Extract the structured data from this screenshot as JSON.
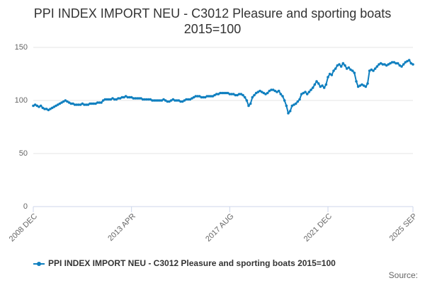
{
  "chart_data": {
    "type": "line",
    "title": "PPI INDEX IMPORT NEU - C3012 Pleasure and sporting boats 2015=100",
    "source": "Source:",
    "x": [
      "2008 DEC",
      "2009 JAN",
      "2009 FEB",
      "2009 MAR",
      "2009 APR",
      "2009 MAY",
      "2009 JUN",
      "2009 JUL",
      "2009 AUG",
      "2009 SEP",
      "2009 OCT",
      "2009 NOV",
      "2009 DEC",
      "2010 JAN",
      "2010 FEB",
      "2010 MAR",
      "2010 APR",
      "2010 MAY",
      "2010 JUN",
      "2010 JUL",
      "2010 AUG",
      "2010 SEP",
      "2010 OCT",
      "2010 NOV",
      "2010 DEC",
      "2011 JAN",
      "2011 FEB",
      "2011 MAR",
      "2011 APR",
      "2011 MAY",
      "2011 JUN",
      "2011 JUL",
      "2011 AUG",
      "2011 SEP",
      "2011 OCT",
      "2011 NOV",
      "2011 DEC",
      "2012 JAN",
      "2012 FEB",
      "2012 MAR",
      "2012 APR",
      "2012 MAY",
      "2012 JUN",
      "2012 JUL",
      "2012 AUG",
      "2012 SEP",
      "2012 OCT",
      "2012 NOV",
      "2012 DEC",
      "2013 JAN",
      "2013 FEB",
      "2013 MAR",
      "2013 APR",
      "2013 MAY",
      "2013 JUN",
      "2013 JUL",
      "2013 AUG",
      "2013 SEP",
      "2013 OCT",
      "2013 NOV",
      "2013 DEC",
      "2014 JAN",
      "2014 FEB",
      "2014 MAR",
      "2014 APR",
      "2014 MAY",
      "2014 JUN",
      "2014 JUL",
      "2014 AUG",
      "2014 SEP",
      "2014 OCT",
      "2014 NOV",
      "2014 DEC",
      "2015 JAN",
      "2015 FEB",
      "2015 MAR",
      "2015 APR",
      "2015 MAY",
      "2015 JUN",
      "2015 JUL",
      "2015 AUG",
      "2015 SEP",
      "2015 OCT",
      "2015 NOV",
      "2015 DEC",
      "2016 JAN",
      "2016 FEB",
      "2016 MAR",
      "2016 APR",
      "2016 MAY",
      "2016 JUN",
      "2016 JUL",
      "2016 AUG",
      "2016 SEP",
      "2016 OCT",
      "2016 NOV",
      "2016 DEC",
      "2017 JAN",
      "2017 FEB",
      "2017 MAR",
      "2017 APR",
      "2017 MAY",
      "2017 JUN",
      "2017 JUL",
      "2017 AUG",
      "2017 SEP",
      "2017 OCT",
      "2017 NOV",
      "2017 DEC",
      "2018 JAN",
      "2018 FEB",
      "2018 MAR",
      "2018 APR",
      "2018 MAY",
      "2018 JUN",
      "2018 JUL",
      "2018 AUG",
      "2018 SEP",
      "2018 OCT",
      "2018 NOV",
      "2018 DEC",
      "2019 JAN",
      "2019 FEB",
      "2019 MAR",
      "2019 APR",
      "2019 MAY",
      "2019 JUN",
      "2019 JUL",
      "2019 AUG",
      "2019 SEP",
      "2019 OCT",
      "2019 NOV",
      "2019 DEC",
      "2020 JAN",
      "2020 FEB",
      "2020 MAR",
      "2020 APR",
      "2020 MAY",
      "2020 JUN",
      "2020 JUL",
      "2020 AUG",
      "2020 SEP",
      "2020 OCT",
      "2020 NOV",
      "2020 DEC",
      "2021 JAN",
      "2021 FEB",
      "2021 MAR",
      "2021 APR",
      "2021 MAY",
      "2021 JUN",
      "2021 JUL",
      "2021 AUG",
      "2021 SEP",
      "2021 OCT",
      "2021 NOV",
      "2021 DEC",
      "2022 JAN",
      "2022 FEB",
      "2022 MAR",
      "2022 APR",
      "2022 MAY",
      "2022 JUN",
      "2022 JUL",
      "2022 AUG",
      "2022 SEP",
      "2022 OCT",
      "2022 NOV",
      "2022 DEC",
      "2023 JAN",
      "2023 FEB",
      "2023 MAR",
      "2023 APR",
      "2023 MAY",
      "2023 JUN",
      "2023 JUL",
      "2023 AUG",
      "2023 SEP",
      "2023 OCT",
      "2023 NOV",
      "2023 DEC",
      "2024 JAN",
      "2024 FEB",
      "2024 MAR",
      "2024 APR",
      "2024 MAY",
      "2024 JUN",
      "2024 JUL",
      "2024 AUG",
      "2024 SEP",
      "2024 OCT",
      "2024 NOV",
      "2024 DEC",
      "2025 JAN",
      "2025 FEB",
      "2025 MAR",
      "2025 APR",
      "2025 MAY",
      "2025 JUN",
      "2025 JUL",
      "2025 AUG",
      "2025 SEP"
    ],
    "series": [
      {
        "name": "PPI INDEX IMPORT NEU - C3012 Pleasure and sporting boats 2015=100",
        "color": "#0f7fbf",
        "values": [
          95,
          96,
          95,
          94,
          95,
          93,
          92,
          92,
          91,
          92,
          93,
          94,
          95,
          96,
          97,
          98,
          99,
          100,
          99,
          98,
          97,
          97,
          96,
          96,
          96,
          96,
          97,
          96,
          96,
          96,
          97,
          97,
          97,
          97,
          98,
          98,
          98,
          100,
          101,
          101,
          101,
          101,
          102,
          101,
          101,
          102,
          102,
          103,
          103,
          104,
          103,
          103,
          103,
          102,
          102,
          102,
          102,
          102,
          101,
          101,
          101,
          101,
          101,
          100,
          100,
          100,
          100,
          100,
          100,
          101,
          100,
          99,
          99,
          100,
          101,
          100,
          100,
          100,
          99,
          99,
          100,
          101,
          101,
          101,
          102,
          103,
          104,
          104,
          104,
          103,
          103,
          103,
          104,
          104,
          104,
          104,
          105,
          106,
          106,
          107,
          107,
          107,
          107,
          107,
          106,
          106,
          106,
          105,
          105,
          106,
          106,
          105,
          103,
          100,
          95,
          97,
          103,
          105,
          107,
          108,
          109,
          108,
          107,
          106,
          107,
          109,
          110,
          110,
          109,
          108,
          109,
          106,
          104,
          100,
          95,
          88,
          90,
          95,
          96,
          97,
          99,
          101,
          106,
          107,
          108,
          106,
          108,
          110,
          112,
          115,
          118,
          116,
          113,
          114,
          112,
          115,
          122,
          125,
          124,
          128,
          130,
          133,
          134,
          132,
          135,
          133,
          130,
          131,
          129,
          128,
          126,
          118,
          113,
          114,
          115,
          114,
          113,
          116,
          128,
          129,
          128,
          130,
          132,
          134,
          135,
          134,
          134,
          133,
          134,
          135,
          136,
          136,
          135,
          135,
          133,
          132,
          134,
          136,
          137,
          138,
          135,
          134
        ]
      }
    ],
    "xticks": [
      "2008 DEC",
      "2013 APR",
      "2017 AUG",
      "2021 DEC",
      "2025 SEP"
    ],
    "ylim": [
      0,
      160
    ],
    "yticks": [
      0,
      50,
      100,
      150
    ],
    "grid": true
  }
}
